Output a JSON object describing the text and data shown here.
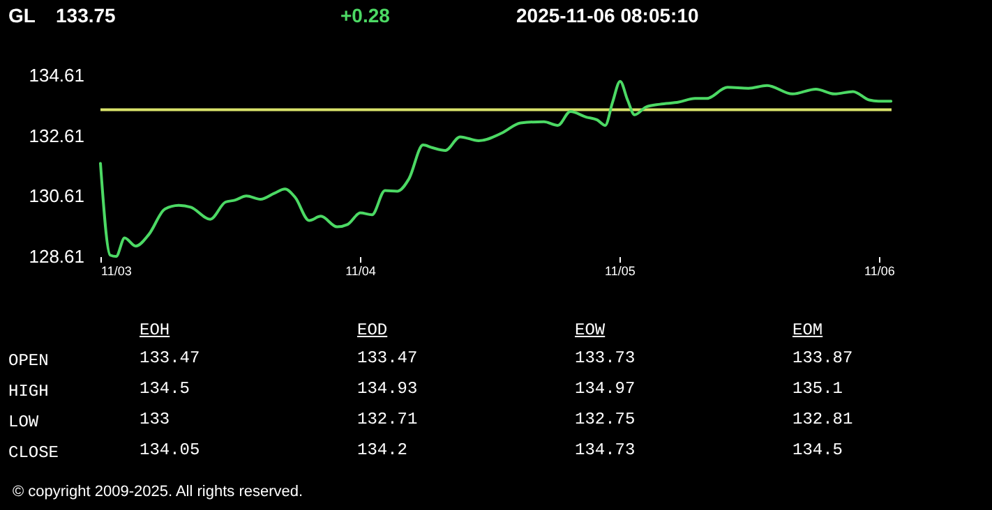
{
  "chart_data": [
    {
      "type": "line",
      "title": "GL",
      "annotations": [
        "133.75",
        "+0.28",
        "2025-11-06 08:05:10"
      ],
      "x": [
        "2025-11-03T00:00",
        "2025-11-03T00:54",
        "2025-11-03T01:27",
        "2025-11-03T02:14",
        "2025-11-03T03:16",
        "2025-11-03T04:29",
        "2025-11-03T05:58",
        "2025-11-03T07:16",
        "2025-11-03T08:21",
        "2025-11-03T10:09",
        "2025-11-03T11:34",
        "2025-11-03T12:25",
        "2025-11-03T13:30",
        "2025-11-03T14:48",
        "2025-11-03T16:05",
        "2025-11-03T17:04",
        "2025-11-03T18:01",
        "2025-11-03T19:18",
        "2025-11-03T20:23",
        "2025-11-03T21:53",
        "2025-11-03T22:52",
        "2025-11-04T00:02",
        "2025-11-04T01:07",
        "2025-11-04T02:19",
        "2025-11-04T03:28",
        "2025-11-04T04:32",
        "2025-11-04T05:50",
        "2025-11-04T06:42",
        "2025-11-04T07:54",
        "2025-11-04T09:16",
        "2025-11-04T10:59",
        "2025-11-04T13:09",
        "2025-11-04T14:51",
        "2025-11-04T17:01",
        "2025-11-04T18:18",
        "2025-11-04T19:28",
        "2025-11-04T20:53",
        "2025-11-04T21:57",
        "2025-11-04T22:41",
        "2025-11-04T23:22",
        "2025-11-05T00:04",
        "2025-11-05T00:45",
        "2025-11-05T01:24",
        "2025-11-05T02:28",
        "2025-11-05T03:45",
        "2025-11-05T05:29",
        "2025-11-05T06:59",
        "2025-11-05T08:04",
        "2025-11-05T10:00",
        "2025-11-05T11:56",
        "2025-11-05T13:39",
        "2025-11-05T16:00",
        "2025-11-05T18:10",
        "2025-11-05T19:53",
        "2025-11-05T21:36",
        "2025-11-05T23:06",
        "2025-11-05T23:58",
        "2025-11-06T01:07"
      ],
      "series": [
        {
          "color": "#4cd964",
          "values": [
            131.69,
            128.65,
            128.61,
            129.22,
            128.95,
            129.34,
            130.18,
            130.3,
            130.24,
            129.84,
            130.41,
            130.47,
            130.61,
            130.5,
            130.7,
            130.84,
            130.56,
            129.8,
            129.94,
            129.59,
            129.67,
            130.05,
            129.99,
            130.79,
            130.77,
            131.18,
            132.3,
            132.21,
            132.12,
            132.57,
            132.44,
            132.7,
            133.03,
            133.07,
            132.95,
            133.41,
            133.23,
            133.13,
            132.95,
            133.72,
            134.41,
            133.79,
            133.3,
            133.56,
            133.65,
            133.72,
            133.84,
            133.84,
            134.21,
            134.18,
            134.27,
            133.99,
            134.15,
            133.99,
            134.07,
            133.79,
            133.75,
            133.75
          ]
        }
      ],
      "xlim": [
        "2025-11-03T00:00",
        "2025-11-06T01:10"
      ],
      "xticks": [
        {
          "value": "2025-11-03",
          "label": "11/03"
        },
        {
          "value": "2025-11-04",
          "label": "11/04"
        },
        {
          "value": "2025-11-05",
          "label": "11/05"
        },
        {
          "value": "2025-11-06",
          "label": "11/06"
        }
      ],
      "ylim": [
        128.61,
        134.61
      ],
      "yticks": [
        128.61,
        130.61,
        132.61,
        134.61
      ],
      "ref_lines": [
        {
          "axis": "y",
          "value": 133.47,
          "color": "#d9e36b"
        }
      ]
    },
    {
      "type": "other",
      "categories": [
        "EOH",
        "EOD",
        "EOW",
        "EOM"
      ],
      "y_categories": [
        "OPEN",
        "HIGH",
        "LOW",
        "CLOSE"
      ],
      "cell_labels": [
        [
          "133.47",
          "133.47",
          "133.73",
          "133.87"
        ],
        [
          "134.5",
          "134.93",
          "134.97",
          "135.1"
        ],
        [
          "133",
          "132.71",
          "132.75",
          "132.81"
        ],
        [
          "134.05",
          "134.2",
          "134.73",
          "134.5"
        ]
      ],
      "annotations": [
        "© copyright 2009-2025. All rights reserved."
      ]
    }
  ]
}
